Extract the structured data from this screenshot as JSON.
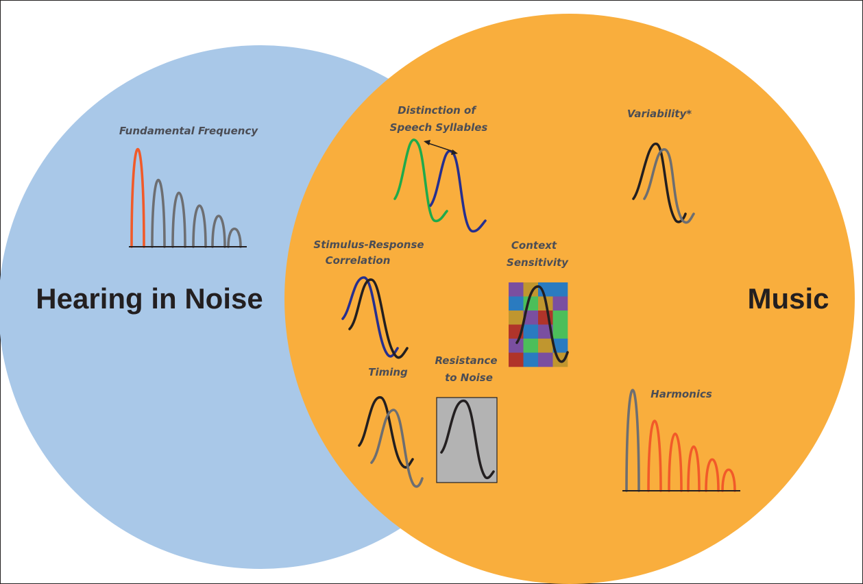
{
  "colors": {
    "left_circle": "#a9c8e8",
    "right_circle": "#f9ae3d",
    "frame": "#231f20",
    "label_text": "#4b4d55",
    "orange_wave": "#f15a29",
    "gray_wave": "#6d6e71",
    "black_wave": "#231f20",
    "green_wave": "#1faa4b",
    "blue_wave": "#262f8f",
    "noise_box": "#b3b3b3",
    "mosaic": [
      "#7a4fa0",
      "#2a7bc0",
      "#4cbe5a",
      "#c0962f",
      "#b0342a"
    ]
  },
  "sets": {
    "left": "Hearing in Noise",
    "right": "Music"
  },
  "labels": {
    "fundamental_frequency": "Fundamental Frequency",
    "distinction_line1": "Distinction of",
    "distinction_line2": "Speech Syllables",
    "variability": "Variability*",
    "stimulus_line1": "Stimulus-Response",
    "stimulus_line2": "Correlation",
    "context_line1": "Context",
    "context_line2": "Sensitivity",
    "timing": "Timing",
    "resistance_line1": "Resistance",
    "resistance_line2": "to Noise",
    "harmonics": "Harmonics"
  }
}
